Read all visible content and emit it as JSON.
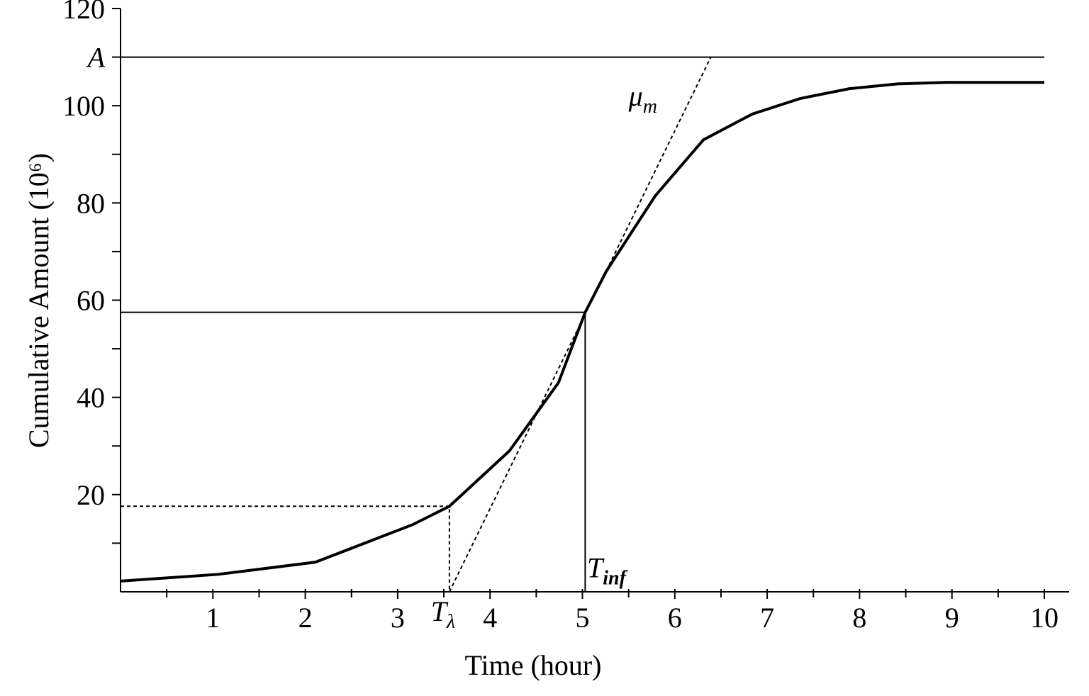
{
  "chart_data": {
    "type": "line",
    "x_label": "Time (hour)",
    "y_label": "Cumulative Amount (10⁶)",
    "xlim": [
      0,
      10
    ],
    "ylim": [
      0,
      120
    ],
    "xticks": [
      1,
      2,
      3,
      4,
      5,
      6,
      7,
      8,
      9,
      10
    ],
    "xticks_minor": [
      0.5,
      1.5,
      2.5,
      3.5,
      4.5,
      5.5,
      6.5,
      7.5,
      8.5,
      9.5
    ],
    "yticks": [
      20,
      40,
      60,
      80,
      100,
      {
        "value": 110,
        "label": "A"
      },
      120
    ],
    "yticks_minor": [
      10,
      30,
      50,
      70,
      90
    ],
    "series": [
      {
        "color": "#000000",
        "x": [
          0,
          1.06,
          2.11,
          3.16,
          3.56,
          4.21,
          4.74,
          5.03,
          5.26,
          5.79,
          6.31,
          6.84,
          7.36,
          7.89,
          8.42,
          8.94,
          9.47,
          10
        ],
        "values": [
          2.2,
          3.6,
          6.1,
          13.8,
          17.6,
          29,
          43,
          57.5,
          66,
          81.5,
          93,
          98.3,
          101.5,
          103.5,
          104.5,
          104.8,
          104.8,
          104.8
        ]
      }
    ],
    "reference_lines": [
      {
        "x": [
          0,
          10
        ],
        "values": [
          110,
          110
        ],
        "style": "solid"
      },
      {
        "x": [
          0,
          5.03,
          5.03
        ],
        "values": [
          57.5,
          57.5,
          0
        ],
        "style": "solid"
      },
      {
        "x": [
          0,
          3.56,
          3.56
        ],
        "values": [
          17.6,
          17.6,
          0
        ],
        "style": "dashed"
      },
      {
        "x": [
          3.56,
          6.39
        ],
        "values": [
          0,
          110
        ],
        "style": "dashed"
      }
    ],
    "annotations": [
      {
        "base": "μ",
        "sub": "m",
        "x": 5.5,
        "y": 100
      },
      {
        "base": "T",
        "sub": "λ",
        "x": 3.36,
        "y": -6
      },
      {
        "base": "T",
        "sub": "inf",
        "x": 5.05,
        "y": 3
      }
    ]
  }
}
